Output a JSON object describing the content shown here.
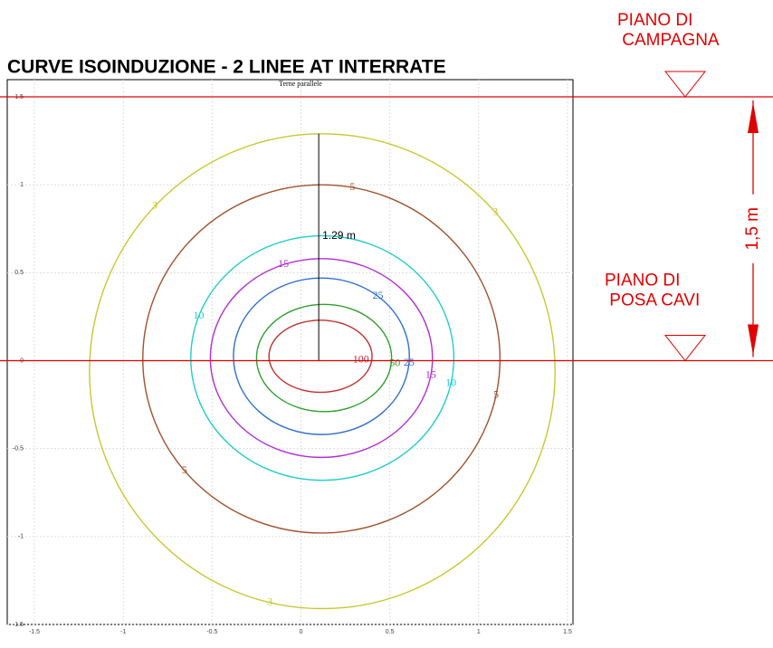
{
  "chart_data": {
    "type": "contour",
    "title": "CURVE ISOINDUZIONE - 2 LINEE AT INTERRATE",
    "subtitle": "Terne parallele",
    "xlim": [
      -1.5,
      1.5
    ],
    "ylim": [
      -1.5,
      1.5
    ],
    "xticks": [
      -1.5,
      -1,
      -0.5,
      0,
      0.5,
      1,
      1.5
    ],
    "yticks": [
      -1.5,
      -1,
      -0.5,
      0,
      0.5,
      1,
      1.5
    ],
    "grid": true,
    "contours": [
      {
        "level": 3,
        "color": "#c8c832",
        "xmin": -1.19,
        "xmax": 1.43,
        "ymin": -1.41,
        "ymax": 1.29
      },
      {
        "level": 5,
        "color": "#a0522d",
        "xmin": -0.89,
        "xmax": 1.12,
        "ymin": -0.98,
        "ymax": 1.0
      },
      {
        "level": 10,
        "color": "#22cccc",
        "xmin": -0.62,
        "xmax": 0.86,
        "ymin": -0.68,
        "ymax": 0.71
      },
      {
        "level": 15,
        "color": "#b030d0",
        "xmin": -0.51,
        "xmax": 0.74,
        "ymin": -0.55,
        "ymax": 0.58
      },
      {
        "level": 25,
        "color": "#3070d0",
        "xmin": -0.38,
        "xmax": 0.61,
        "ymin": -0.42,
        "ymax": 0.47
      },
      {
        "level": 50,
        "color": "#30a030",
        "xmin": -0.25,
        "xmax": 0.51,
        "ymin": -0.29,
        "ymax": 0.32
      },
      {
        "level": 100,
        "color": "#c03030",
        "xmin": -0.18,
        "xmax": 0.4,
        "ymin": -0.18,
        "ymax": 0.23
      }
    ],
    "marker_line": {
      "x": 0.1,
      "y": 1.29,
      "label": "1.29 m"
    },
    "reference_lines": [
      1.5,
      0
    ],
    "reference_color": "#e00000",
    "ground_label": "PIANO DI CAMPAGNA",
    "cable_label": "PIANO DI POSA CAVI",
    "dimension": {
      "value": 1.5,
      "label": "1,5 m"
    }
  }
}
